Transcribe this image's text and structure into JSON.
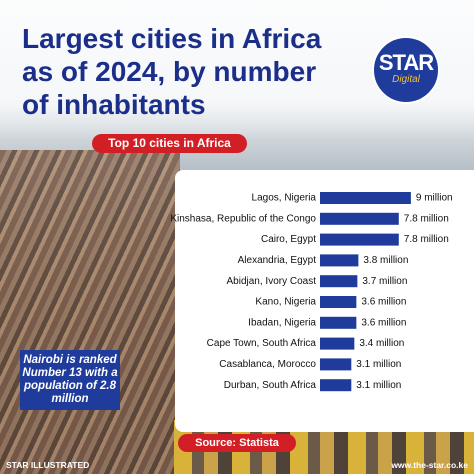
{
  "chart_data": {
    "type": "bar",
    "orientation": "horizontal",
    "title_lines": [
      "Largest cities in Africa",
      "as of 2024, by number",
      "of inhabitants"
    ],
    "subtitle": "Top 10 cities in Africa",
    "logo": {
      "name": "STAR",
      "sub": "Digital"
    },
    "categories": [
      "Lagos, Nigeria",
      "Kinshasa, Republic of the Congo",
      "Cairo, Egypt",
      "Alexandria, Egypt",
      "Abidjan, Ivory Coast",
      "Kano, Nigeria",
      "Ibadan, Nigeria",
      "Cape Town, South Africa",
      "Casablanca, Morocco",
      "Durban, South Africa"
    ],
    "values": [
      9,
      7.8,
      7.8,
      3.8,
      3.7,
      3.6,
      3.6,
      3.4,
      3.1,
      3.1
    ],
    "value_labels": [
      "9 million",
      "7.8 million",
      "7.8 million",
      "3.8 million",
      "3.7 million",
      "3.6 million",
      "3.6 million",
      "3.4 million",
      "3.1 million",
      "3.1 million"
    ],
    "color": "#1f3c9c",
    "annotation": "Nairobi is ranked Number 13 with a population of 2.8 million",
    "source": "Source: Statista",
    "footer_left": "STAR ILLUSTRATED",
    "footer_right": "www.the-star.co.ke"
  }
}
